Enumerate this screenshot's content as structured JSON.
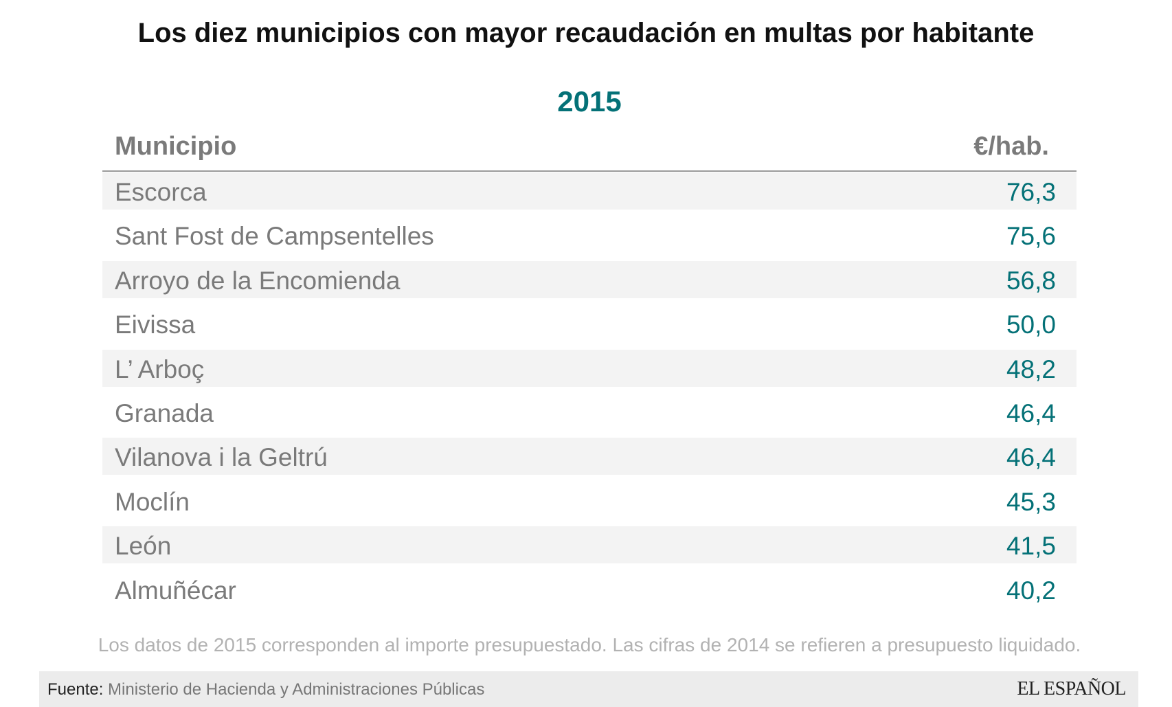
{
  "title": "Los diez municipios con mayor recaudación en multas por habitante",
  "year": "2015",
  "columns": {
    "name": "Municipio",
    "value": "€/hab."
  },
  "rows": [
    {
      "name": "Escorca",
      "value": "76,3"
    },
    {
      "name": "Sant Fost de Campsentelles",
      "value": "75,6"
    },
    {
      "name": "Arroyo de la Encomienda",
      "value": "56,8"
    },
    {
      "name": "Eivissa",
      "value": "50,0"
    },
    {
      "name": "L’ Arboç",
      "value": "48,2"
    },
    {
      "name": "Granada",
      "value": "46,4"
    },
    {
      "name": "Vilanova i la Geltrú",
      "value": "46,4"
    },
    {
      "name": "Moclín",
      "value": "45,3"
    },
    {
      "name": "León",
      "value": "41,5"
    },
    {
      "name": "Almuñécar",
      "value": "40,2"
    }
  ],
  "note": "Los datos de 2015 corresponden al importe presupuestado. Las cifras de 2014 se refieren a presupuesto liquidado.",
  "footer": {
    "source_label": "Fuente:",
    "source": " Ministerio de Hacienda y Administraciones Públicas",
    "logo": "EL ESPAÑOL"
  },
  "colors": {
    "accent": "#047177",
    "text": "#7a7a7a",
    "shade": "#f3f3f3"
  }
}
